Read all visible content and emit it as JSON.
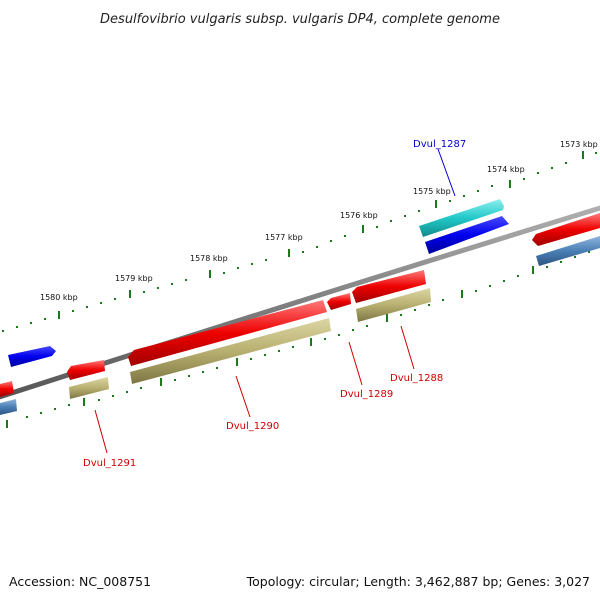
{
  "title": "Desulfovibrio vulgaris subsp. vulgaris DP4, complete genome",
  "footer": {
    "accession": "Accession: NC_008751",
    "summary": "Topology: circular; Length: 3,462,887 bp; Genes: 3,027"
  },
  "kbp_labels": [
    "1573 kbp",
    "1574 kbp",
    "1575 kbp",
    "1576 kbp",
    "1577 kbp",
    "1578 kbp",
    "1579 kbp",
    "1580 kbp"
  ],
  "gene_labels": [
    {
      "name": "Dvul_1287",
      "color": "#0000cc"
    },
    {
      "name": "Dvul_1288",
      "color": "#cc0000"
    },
    {
      "name": "Dvul_1289",
      "color": "#cc0000"
    },
    {
      "name": "Dvul_1290",
      "color": "#cc0000"
    },
    {
      "name": "Dvul_1291",
      "color": "#cc0000"
    }
  ],
  "colors": {
    "backbone": "#808080",
    "scale_ticks": "#1a7a1a",
    "forward_cds": "#0000ee",
    "forward_feature": "#22c8c8",
    "reverse_cds": "#ee1111",
    "reverse_feature": "#b8b070",
    "other_feature": "#4a7fb5"
  }
}
